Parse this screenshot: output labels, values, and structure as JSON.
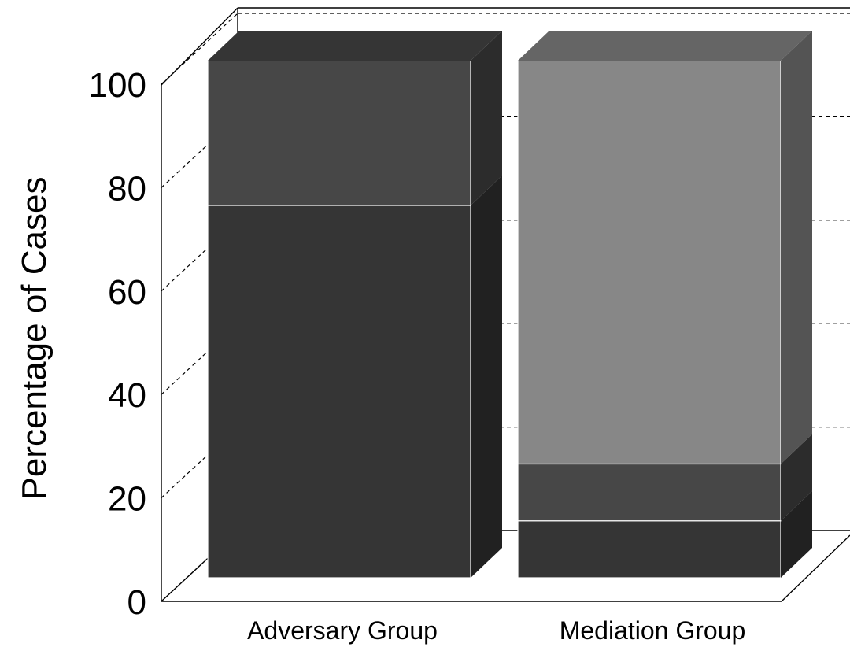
{
  "chart_data": {
    "type": "bar",
    "stacked": true,
    "three_d": true,
    "title": "",
    "xlabel": "",
    "ylabel": "Percentage of Cases",
    "ylim": [
      0,
      100
    ],
    "yticks": [
      "0",
      "20",
      "40",
      "60",
      "80",
      "100"
    ],
    "grid": true,
    "categories": [
      "Adversary Group",
      "Mediation Group"
    ],
    "series": [
      {
        "color": "#353535",
        "values": [
          72,
          11
        ]
      },
      {
        "color": "#474747",
        "values": [
          28,
          11
        ]
      },
      {
        "color": "#878787",
        "values": [
          0,
          78
        ]
      }
    ]
  }
}
